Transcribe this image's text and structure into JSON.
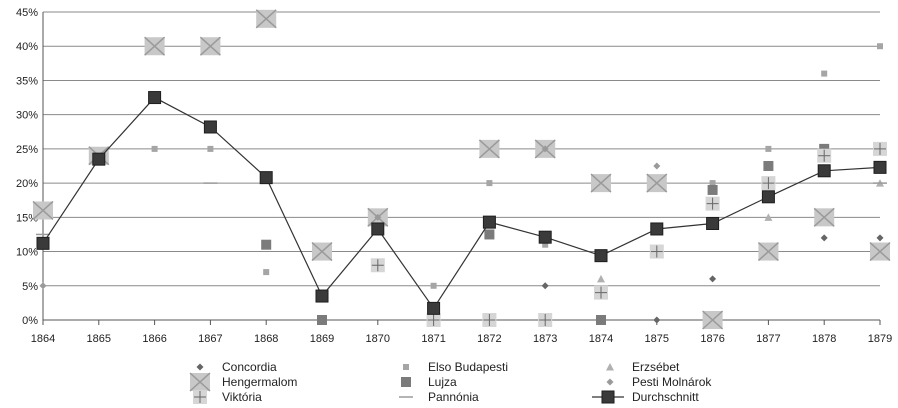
{
  "chart_data": {
    "type": "line",
    "title": "",
    "xlabel": "",
    "ylabel": "",
    "x": [
      "1864",
      "1865",
      "1866",
      "1867",
      "1868",
      "1869",
      "1870",
      "1871",
      "1872",
      "1873",
      "1874",
      "1875",
      "1876",
      "1877",
      "1878",
      "1879"
    ],
    "ylim": [
      0,
      45
    ],
    "yticks": [
      "0%",
      "5%",
      "10%",
      "15%",
      "20%",
      "25%",
      "30%",
      "35%",
      "40%",
      "45%"
    ],
    "grid": true,
    "legend_position": "bottom",
    "series": [
      {
        "name": "Concordia",
        "marker": "diamond-small",
        "values": [
          null,
          null,
          null,
          null,
          null,
          null,
          null,
          null,
          null,
          5,
          null,
          0,
          6,
          null,
          12,
          12
        ]
      },
      {
        "name": "Elso Budapesti",
        "marker": "square-small",
        "values": [
          null,
          null,
          25,
          25,
          7,
          null,
          null,
          5,
          20,
          11,
          null,
          null,
          20,
          25,
          36,
          40
        ]
      },
      {
        "name": "Erzsébet",
        "marker": "triangle",
        "values": [
          null,
          null,
          null,
          null,
          null,
          null,
          null,
          null,
          null,
          null,
          6,
          null,
          null,
          15,
          null,
          20
        ]
      },
      {
        "name": "Hengermalom",
        "marker": "x-box",
        "values": [
          16,
          24,
          40,
          40,
          44,
          10,
          15,
          null,
          25,
          25,
          20,
          20,
          0,
          10,
          15,
          10
        ]
      },
      {
        "name": "Lujza",
        "marker": "square-dark",
        "values": [
          null,
          null,
          null,
          null,
          11,
          0,
          null,
          null,
          12.5,
          null,
          0,
          null,
          19,
          22.5,
          25,
          null
        ]
      },
      {
        "name": "Pesti Molnárok",
        "marker": "diamond-light",
        "values": [
          5,
          null,
          null,
          null,
          null,
          null,
          15,
          null,
          null,
          25,
          null,
          22.5,
          null,
          null,
          null,
          null
        ]
      },
      {
        "name": "Viktória",
        "marker": "plus-box",
        "values": [
          null,
          null,
          null,
          null,
          null,
          null,
          8,
          0,
          0,
          0,
          4,
          10,
          17,
          20,
          24,
          25
        ]
      },
      {
        "name": "Pannónia",
        "marker": "dash",
        "values": [
          12.5,
          null,
          null,
          20,
          null,
          null,
          null,
          null,
          null,
          null,
          null,
          null,
          null,
          null,
          null,
          20
        ]
      },
      {
        "name": "Durchschnitt",
        "marker": "line-square",
        "values": [
          11.2,
          23.5,
          32.5,
          28.2,
          20.8,
          3.5,
          13.3,
          1.7,
          14.3,
          12.1,
          9.4,
          13.3,
          14.1,
          18,
          21.8,
          22.3
        ]
      }
    ]
  }
}
